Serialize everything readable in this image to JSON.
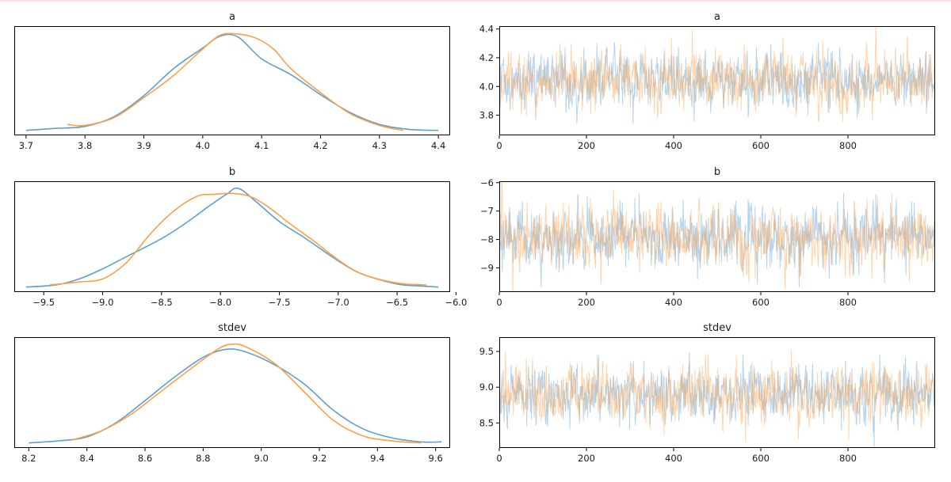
{
  "chart_data": [
    {
      "type": "line",
      "kind": "density",
      "title": "a",
      "xlim": [
        3.68,
        4.42
      ],
      "xticks": [
        3.7,
        3.8,
        3.9,
        4.0,
        4.1,
        4.2,
        4.3,
        4.4
      ],
      "xtick_labels": [
        "3.7",
        "3.8",
        "3.9",
        "4.0",
        "4.1",
        "4.2",
        "4.3",
        "4.4"
      ],
      "yticks": [],
      "colors": [
        "#5c9fd4",
        "#ff9f45"
      ],
      "series": [
        {
          "x": [
            3.7,
            3.75,
            3.8,
            3.85,
            3.9,
            3.95,
            4.0,
            4.03,
            4.06,
            4.1,
            4.15,
            4.2,
            4.25,
            4.3,
            4.35,
            4.4
          ],
          "y": [
            0.0,
            0.02,
            0.04,
            0.14,
            0.35,
            0.62,
            0.83,
            0.95,
            0.94,
            0.72,
            0.56,
            0.36,
            0.18,
            0.06,
            0.01,
            0.0
          ]
        },
        {
          "x": [
            3.77,
            3.8,
            3.85,
            3.9,
            3.95,
            4.0,
            4.03,
            4.06,
            4.09,
            4.12,
            4.15,
            4.2,
            4.25,
            4.3,
            4.34
          ],
          "y": [
            0.06,
            0.05,
            0.13,
            0.33,
            0.55,
            0.82,
            0.96,
            0.97,
            0.93,
            0.82,
            0.62,
            0.38,
            0.17,
            0.05,
            0.0
          ]
        }
      ]
    },
    {
      "type": "line",
      "kind": "trace",
      "title": "a",
      "xlim": [
        0,
        1000
      ],
      "ylim": [
        3.66,
        4.42
      ],
      "xticks": [
        0,
        200,
        400,
        600,
        800
      ],
      "xtick_labels": [
        "0",
        "200",
        "400",
        "600",
        "800"
      ],
      "yticks": [
        3.8,
        4.0,
        4.2,
        4.4
      ],
      "ytick_labels": [
        "3.8",
        "4.0",
        "4.2",
        "4.4"
      ],
      "n_draws": 1000,
      "center": 4.04,
      "spread": 0.1,
      "colors": [
        "#5c9fd4",
        "#ff9f45"
      ]
    },
    {
      "type": "line",
      "kind": "density",
      "title": "b",
      "xlim": [
        -9.75,
        -6.05
      ],
      "xticks": [
        -9.5,
        -9.0,
        -8.5,
        -8.0,
        -7.5,
        -7.0,
        -6.5,
        -6.0
      ],
      "xtick_labels": [
        "−9.5",
        "−9.0",
        "−8.5",
        "−8.0",
        "−7.5",
        "−7.0",
        "−6.5",
        "−6.0"
      ],
      "yticks": [],
      "colors": [
        "#5c9fd4",
        "#ff9f45"
      ],
      "series": [
        {
          "x": [
            -9.65,
            -9.4,
            -9.2,
            -9.0,
            -8.8,
            -8.5,
            -8.3,
            -8.1,
            -7.95,
            -7.85,
            -7.7,
            -7.5,
            -7.3,
            -7.0,
            -6.8,
            -6.5,
            -6.3,
            -6.15
          ],
          "y": [
            0.0,
            0.02,
            0.08,
            0.18,
            0.3,
            0.48,
            0.63,
            0.8,
            0.92,
            0.98,
            0.85,
            0.65,
            0.5,
            0.26,
            0.13,
            0.03,
            0.01,
            0.0
          ]
        },
        {
          "x": [
            -9.45,
            -9.2,
            -9.0,
            -8.8,
            -8.6,
            -8.4,
            -8.2,
            -8.05,
            -7.9,
            -7.75,
            -7.6,
            -7.4,
            -7.2,
            -7.0,
            -6.8,
            -6.5,
            -6.25
          ],
          "y": [
            0.02,
            0.05,
            0.08,
            0.24,
            0.52,
            0.75,
            0.9,
            0.92,
            0.93,
            0.9,
            0.8,
            0.62,
            0.45,
            0.27,
            0.13,
            0.04,
            0.02
          ]
        }
      ]
    },
    {
      "type": "line",
      "kind": "trace",
      "title": "b",
      "xlim": [
        0,
        1000
      ],
      "ylim": [
        -9.85,
        -5.95
      ],
      "xticks": [
        0,
        200,
        400,
        600,
        800
      ],
      "xtick_labels": [
        "0",
        "200",
        "400",
        "600",
        "800"
      ],
      "yticks": [
        -9,
        -8,
        -7,
        -6
      ],
      "ytick_labels": [
        "−9",
        "−8",
        "−7",
        "−6"
      ],
      "n_draws": 1000,
      "center": -7.95,
      "spread": 0.55,
      "colors": [
        "#5c9fd4",
        "#ff9f45"
      ]
    },
    {
      "type": "line",
      "kind": "density",
      "title": "stdev",
      "xlim": [
        8.15,
        9.65
      ],
      "xticks": [
        8.2,
        8.4,
        8.6,
        8.8,
        9.0,
        9.2,
        9.4,
        9.6
      ],
      "xtick_labels": [
        "8.2",
        "8.4",
        "8.6",
        "8.8",
        "9.0",
        "9.2",
        "9.4",
        "9.6"
      ],
      "yticks": [],
      "colors": [
        "#5c9fd4",
        "#ff9f45"
      ],
      "series": [
        {
          "x": [
            8.2,
            8.3,
            8.4,
            8.5,
            8.6,
            8.7,
            8.8,
            8.88,
            8.95,
            9.05,
            9.15,
            9.25,
            9.35,
            9.45,
            9.55,
            9.62
          ],
          "y": [
            0.0,
            0.02,
            0.06,
            0.2,
            0.42,
            0.65,
            0.85,
            0.93,
            0.9,
            0.77,
            0.58,
            0.32,
            0.14,
            0.05,
            0.01,
            0.01
          ]
        },
        {
          "x": [
            8.35,
            8.45,
            8.55,
            8.65,
            8.75,
            8.85,
            8.9,
            8.95,
            9.05,
            9.15,
            9.25,
            9.35,
            9.45,
            9.55
          ],
          "y": [
            0.03,
            0.12,
            0.28,
            0.5,
            0.72,
            0.93,
            0.98,
            0.95,
            0.78,
            0.5,
            0.22,
            0.07,
            0.02,
            0.0
          ]
        }
      ]
    },
    {
      "type": "line",
      "kind": "trace",
      "title": "stdev",
      "xlim": [
        0,
        1000
      ],
      "ylim": [
        8.15,
        9.7
      ],
      "xticks": [
        0,
        200,
        400,
        600,
        800
      ],
      "xtick_labels": [
        "0",
        "200",
        "400",
        "600",
        "800"
      ],
      "yticks": [
        8.5,
        9.0,
        9.5
      ],
      "ytick_labels": [
        "8.5",
        "9.0",
        "9.5"
      ],
      "n_draws": 1000,
      "center": 8.9,
      "spread": 0.2,
      "colors": [
        "#5c9fd4",
        "#ff9f45"
      ]
    }
  ]
}
